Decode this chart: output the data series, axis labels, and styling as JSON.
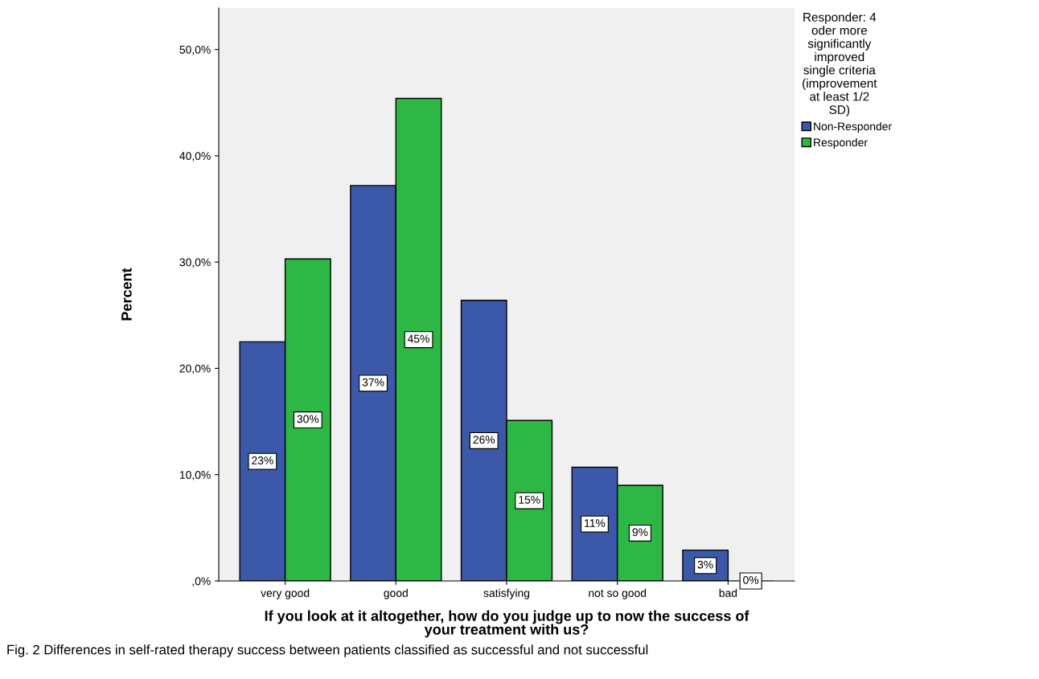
{
  "chart_data": {
    "type": "bar",
    "categories": [
      "very good",
      "good",
      "satisfying",
      "not so good",
      "bad"
    ],
    "series": [
      {
        "name": "Non-Responder",
        "color": "#3c58a8",
        "values": [
          22.5,
          37.2,
          26.4,
          10.7,
          2.9
        ],
        "value_labels": [
          "23%",
          "37%",
          "26%",
          "11%",
          "3%"
        ]
      },
      {
        "name": "Responder",
        "color": "#2db744",
        "values": [
          30.3,
          45.4,
          15.1,
          9.0,
          0
        ],
        "value_labels": [
          "30%",
          "45%",
          "15%",
          "9%",
          "0%"
        ]
      }
    ],
    "xlabel": "If you look at it altogether, how do you judge up to now the success of\nyour treatment with us?",
    "ylabel": "Percent",
    "legend_title": "Responder: 4\noder more\nsignificantly\nimproved\nsingle criteria\n(improvement\nat least 1/2\nSD)",
    "legend": "right",
    "grid": false,
    "ylim": [
      0,
      53.9
    ],
    "yticks": [
      {
        "value": 0,
        "label": ",0%"
      },
      {
        "value": 10,
        "label": "10,0%"
      },
      {
        "value": 20,
        "label": "20,0%"
      },
      {
        "value": 30,
        "label": "30,0%"
      },
      {
        "value": 40,
        "label": "40,0%"
      },
      {
        "value": 50,
        "label": "50,0%"
      }
    ],
    "annotations": [
      "Fig. 2 Differences in self-rated therapy success between patients classified as successful and not successful"
    ]
  }
}
